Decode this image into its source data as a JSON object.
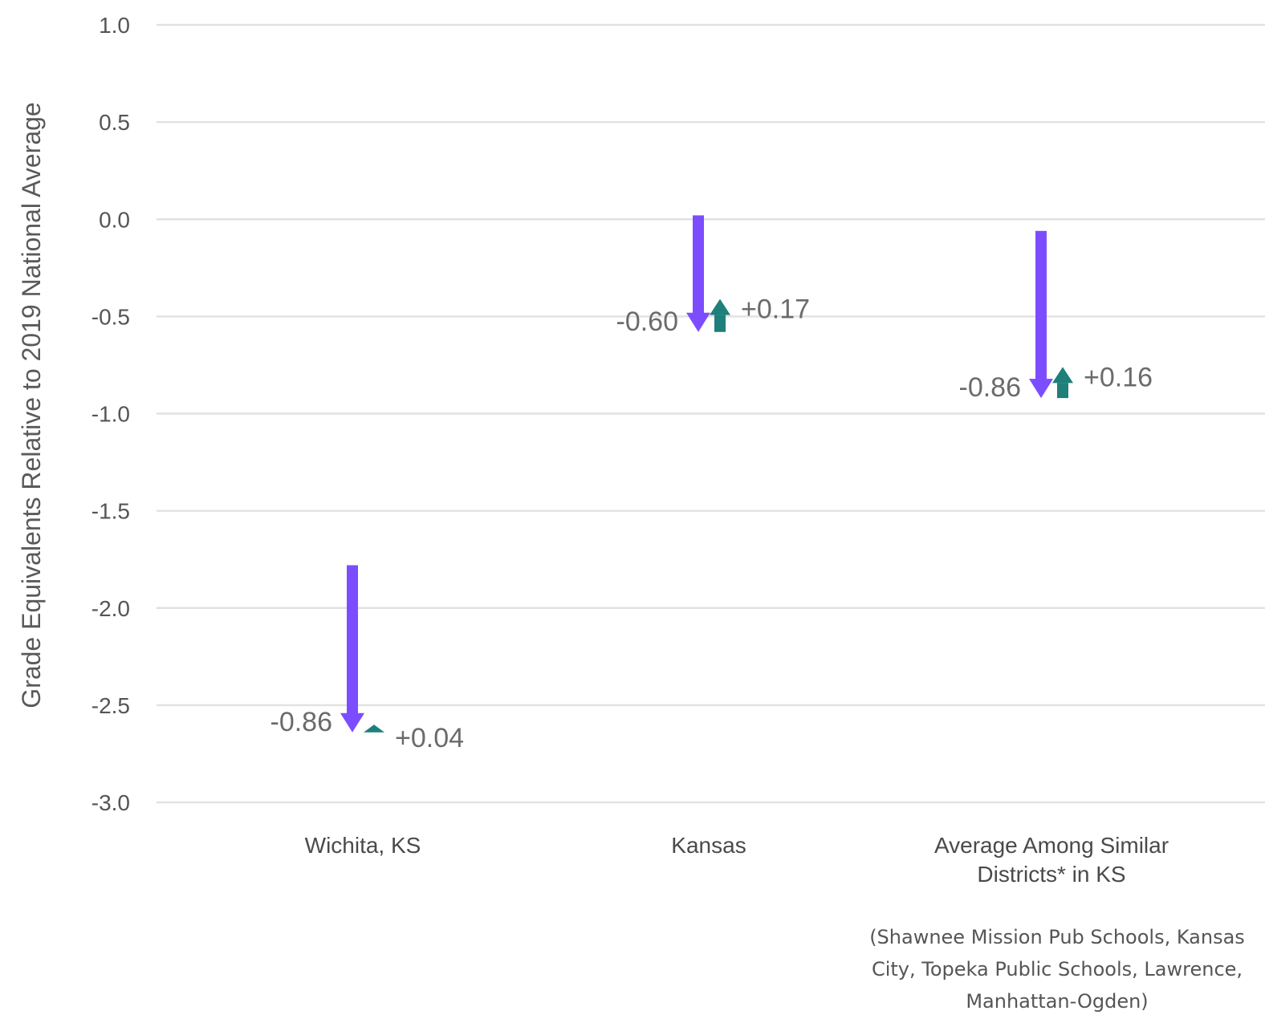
{
  "chart_data": {
    "type": "bar",
    "ylabel": "Grade Equivalents Relative to 2019 National Average",
    "ylim": [
      -3.0,
      1.0
    ],
    "yticks": [
      1.0,
      0.5,
      0.0,
      -0.5,
      -1.0,
      -1.5,
      -2.0,
      -2.5,
      -3.0
    ],
    "ytick_labels": [
      "1.0",
      "0.5",
      "0.0",
      "-0.5",
      "-1.0",
      "-1.5",
      "-2.0",
      "-2.5",
      "-3.0"
    ],
    "grid": true,
    "colors": {
      "decline": "#7c4dff",
      "recovery": "#1f7f7a"
    },
    "categories": [
      {
        "lines": [
          "Wichita, KS"
        ],
        "start": -1.78,
        "decline": -0.86,
        "recovery": 0.04,
        "decline_label": "-0.86",
        "recovery_label": "+0.04"
      },
      {
        "lines": [
          "Kansas"
        ],
        "start": 0.02,
        "decline": -0.6,
        "recovery": 0.17,
        "decline_label": "-0.60",
        "recovery_label": "+0.17"
      },
      {
        "lines": [
          "Average Among Similar",
          "Districts* in KS"
        ],
        "start": -0.06,
        "decline": -0.86,
        "recovery": 0.16,
        "decline_label": "-0.86",
        "recovery_label": "+0.16"
      }
    ],
    "footnote_lines": [
      "(Shawnee Mission Pub Schools, Kansas",
      "City, Topeka Public Schools, Lawrence,",
      "Manhattan-Ogden)"
    ]
  }
}
